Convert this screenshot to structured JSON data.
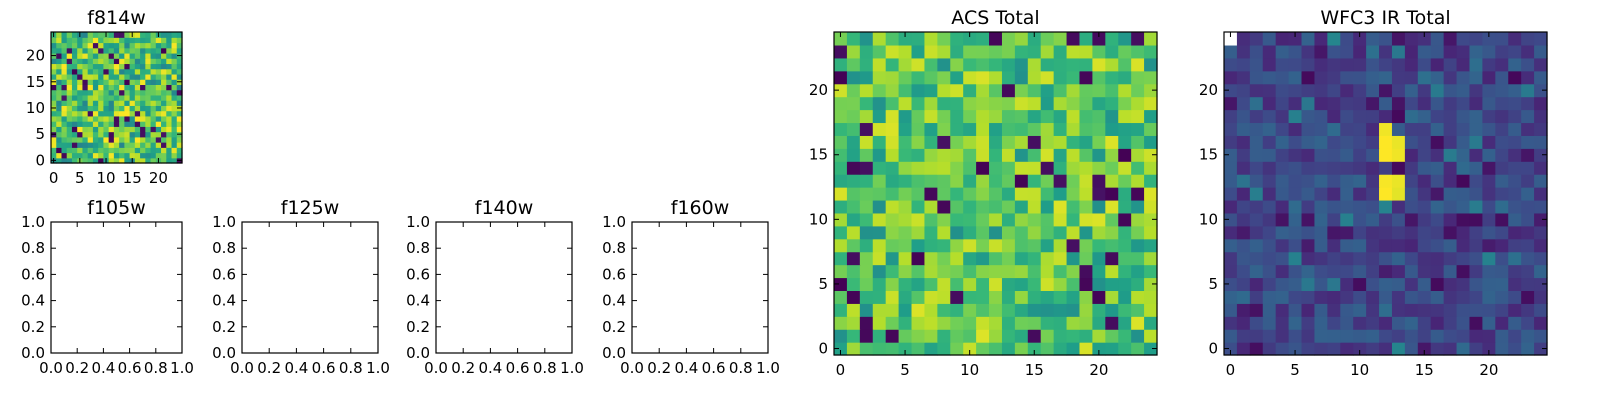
{
  "colors": {
    "colormap": [
      "#440154",
      "#482878",
      "#3e4989",
      "#31688e",
      "#26828e",
      "#1f9e89",
      "#35b779",
      "#6ece58",
      "#b5de2b",
      "#fde725"
    ],
    "frame": "#000000",
    "background": "#ffffff"
  },
  "chart_data": [
    {
      "type": "heatmap",
      "title": "f814w",
      "xlim": [
        -0.5,
        24.5
      ],
      "ylim": [
        -0.5,
        24.5
      ],
      "xticks": [
        0,
        5,
        10,
        15,
        20
      ],
      "yticks": [
        0,
        5,
        10,
        15,
        20
      ],
      "shape": [
        25,
        25
      ],
      "value_range": [
        0,
        1
      ],
      "pattern": "noise: mostly green to yellow-green (0.55-0.9) with scattered dark purple low pixels",
      "seed": 11
    },
    {
      "type": "empty",
      "title": "f105w",
      "xlim": [
        0,
        1
      ],
      "ylim": [
        0,
        1
      ],
      "xticks": [
        "0.0",
        "0.2",
        "0.4",
        "0.6",
        "0.8",
        "1.0"
      ],
      "yticks": [
        "0.0",
        "0.2",
        "0.4",
        "0.6",
        "0.8",
        "1.0"
      ]
    },
    {
      "type": "empty",
      "title": "f125w",
      "xlim": [
        0,
        1
      ],
      "ylim": [
        0,
        1
      ],
      "xticks": [
        "0.0",
        "0.2",
        "0.4",
        "0.6",
        "0.8",
        "1.0"
      ],
      "yticks": [
        "0.0",
        "0.2",
        "0.4",
        "0.6",
        "0.8",
        "1.0"
      ]
    },
    {
      "type": "empty",
      "title": "f140w",
      "xlim": [
        0,
        1
      ],
      "ylim": [
        0,
        1
      ],
      "xticks": [
        "0.0",
        "0.2",
        "0.4",
        "0.6",
        "0.8",
        "1.0"
      ],
      "yticks": [
        "0.0",
        "0.2",
        "0.4",
        "0.6",
        "0.8",
        "1.0"
      ]
    },
    {
      "type": "empty",
      "title": "f160w",
      "xlim": [
        0,
        1
      ],
      "ylim": [
        0,
        1
      ],
      "xticks": [
        "0.0",
        "0.2",
        "0.4",
        "0.6",
        "0.8",
        "1.0"
      ],
      "yticks": [
        "0.0",
        "0.2",
        "0.4",
        "0.6",
        "0.8",
        "1.0"
      ]
    },
    {
      "type": "heatmap",
      "title": "ACS Total",
      "xlim": [
        -0.5,
        24.5
      ],
      "ylim": [
        -0.5,
        24.5
      ],
      "xticks": [
        0,
        5,
        10,
        15,
        20
      ],
      "yticks": [
        0,
        5,
        10,
        15,
        20
      ],
      "shape": [
        25,
        25
      ],
      "value_range": [
        0,
        1
      ],
      "pattern": "noise: mostly green to yellow (0.6-0.95) with a few dark purple pixels",
      "seed": 23
    },
    {
      "type": "heatmap",
      "title": "WFC3 IR Total",
      "xlim": [
        -0.5,
        24.5
      ],
      "ylim": [
        -0.5,
        24.5
      ],
      "xticks": [
        0,
        5,
        10,
        15,
        20
      ],
      "yticks": [
        0,
        5,
        10,
        15,
        20
      ],
      "shape": [
        25,
        25
      ],
      "value_range": [
        0,
        1
      ],
      "pattern": "noise: mostly dark blue-purple (0.1-0.3); bright yellow source at x=12-13, y=12-17 (gap at y=14); one white pixel at top-left (0,24)",
      "seed": 37,
      "hotspots": [
        {
          "x": 12,
          "y": 17,
          "v": 0.98
        },
        {
          "x": 12,
          "y": 16,
          "v": 1.0
        },
        {
          "x": 13,
          "y": 16,
          "v": 0.97
        },
        {
          "x": 12,
          "y": 15,
          "v": 1.0
        },
        {
          "x": 13,
          "y": 15,
          "v": 0.98
        },
        {
          "x": 12,
          "y": 13,
          "v": 0.99
        },
        {
          "x": 13,
          "y": 13,
          "v": 0.97
        },
        {
          "x": 12,
          "y": 12,
          "v": 1.0
        },
        {
          "x": 13,
          "y": 12,
          "v": 0.96
        },
        {
          "x": 12,
          "y": 11,
          "v": 0.45
        }
      ],
      "blank_pixels": [
        {
          "x": 0,
          "y": 24
        }
      ]
    }
  ]
}
